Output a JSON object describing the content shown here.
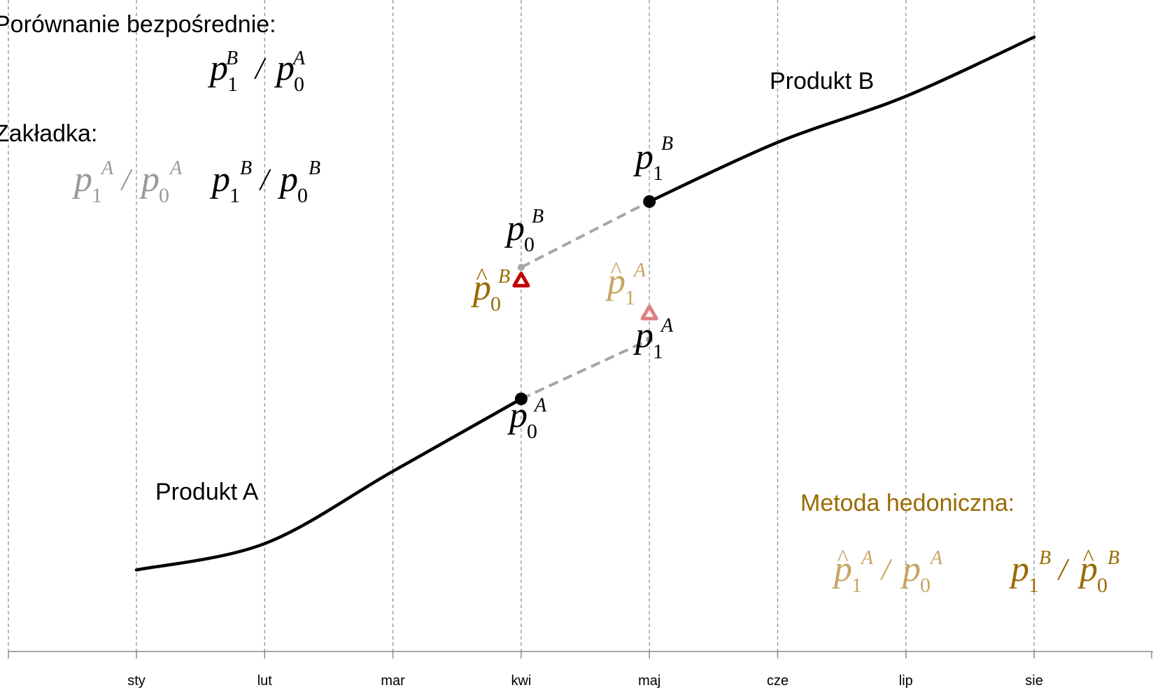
{
  "chart_data": {
    "type": "line",
    "categories": [
      "sty",
      "lut",
      "mar",
      "kwi",
      "maj",
      "cze",
      "lip",
      "sie"
    ],
    "product_a": {
      "label": "Produkt A",
      "values": [
        0.24,
        0.28,
        0.39,
        0.5
      ]
    },
    "product_b": {
      "label": "Produkt B",
      "values": [
        0.8,
        0.89,
        0.96,
        1.05
      ]
    },
    "points": {
      "p0A": {
        "category": "kwi",
        "value": 0.5
      },
      "p1A": {
        "category": "maj",
        "value": 0.59
      },
      "p0B": {
        "category": "kwi",
        "value": 0.7
      },
      "p1B": {
        "category": "maj",
        "value": 0.8
      },
      "p0B_hat": {
        "category": "kwi",
        "value": 0.68
      },
      "p1A_hat": {
        "category": "maj",
        "value": 0.63
      }
    },
    "colors": {
      "line": "#000000",
      "grid": "#8a8a8a",
      "dashed": "#a6a6a6",
      "hedonic_text": "#9a6a00",
      "hedonic_light": "#c9a560",
      "triangle_dark": "#c00000",
      "triangle_light": "#e08080",
      "zakladka_gray": "#999999"
    }
  },
  "text": {
    "direct_title": "Porównanie bezpośrednie:",
    "tab_title": "Zakładka:",
    "hedonic_title": "Metoda hedoniczna:",
    "p": "p",
    "sub0": "0",
    "sub1": "1",
    "supA": "A",
    "supB": "B",
    "slash": "/",
    "hat": "^"
  }
}
